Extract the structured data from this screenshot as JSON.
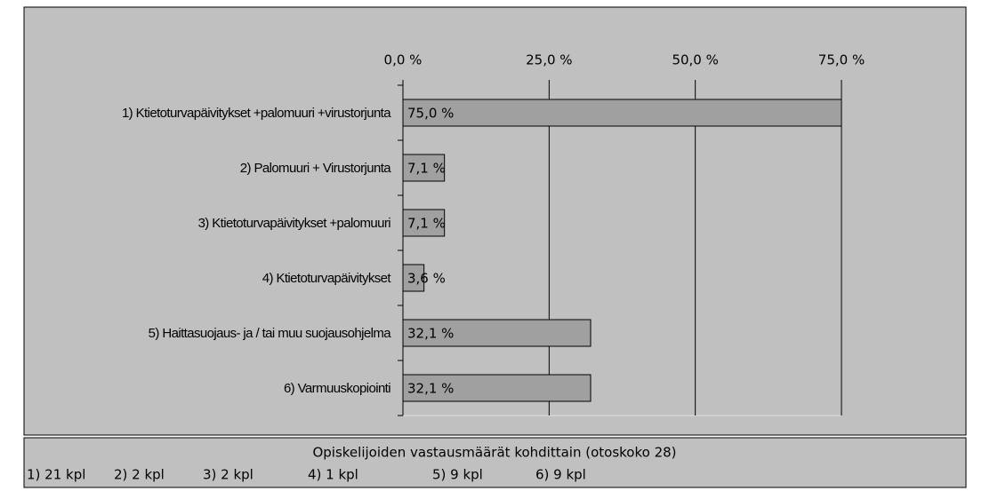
{
  "chart_data": {
    "type": "bar",
    "orientation": "horizontal",
    "categories": [
      "1) Ktietoturvapäivitykset +palomuuri +virustorjunta",
      "2) Palomuuri + Virustorjunta",
      "3) Ktietoturvapäivitykset +palomuuri",
      "4) Ktietoturvapäivitykset",
      "5) Haittasuojaus- ja / tai muu suojausohjelma",
      "6) Varmuuskopiointi"
    ],
    "values": [
      75.0,
      7.1,
      7.1,
      3.6,
      32.1,
      32.1
    ],
    "value_labels": [
      "75,0 %",
      "7,1 %",
      "7,1 %",
      "3,6 %",
      "32,1 %",
      "32,1 %"
    ],
    "color": "#a0a0a0",
    "xlim": [
      0,
      75
    ],
    "xticks": [
      {
        "value": 0,
        "label": "0,0 %"
      },
      {
        "value": 25,
        "label": "25,0 %"
      },
      {
        "value": 50,
        "label": "50,0 %"
      },
      {
        "value": 75,
        "label": "75,0 %"
      }
    ],
    "grid": true,
    "footnote": {
      "title": "Opiskelijoiden vastausmäärät kohdittain (otoskoko 28)",
      "items": [
        "1) 21 kpl",
        "2) 2 kpl",
        "3) 2 kpl",
        "4) 1 kpl",
        "5) 9 kpl",
        "6) 9 kpl"
      ]
    }
  }
}
